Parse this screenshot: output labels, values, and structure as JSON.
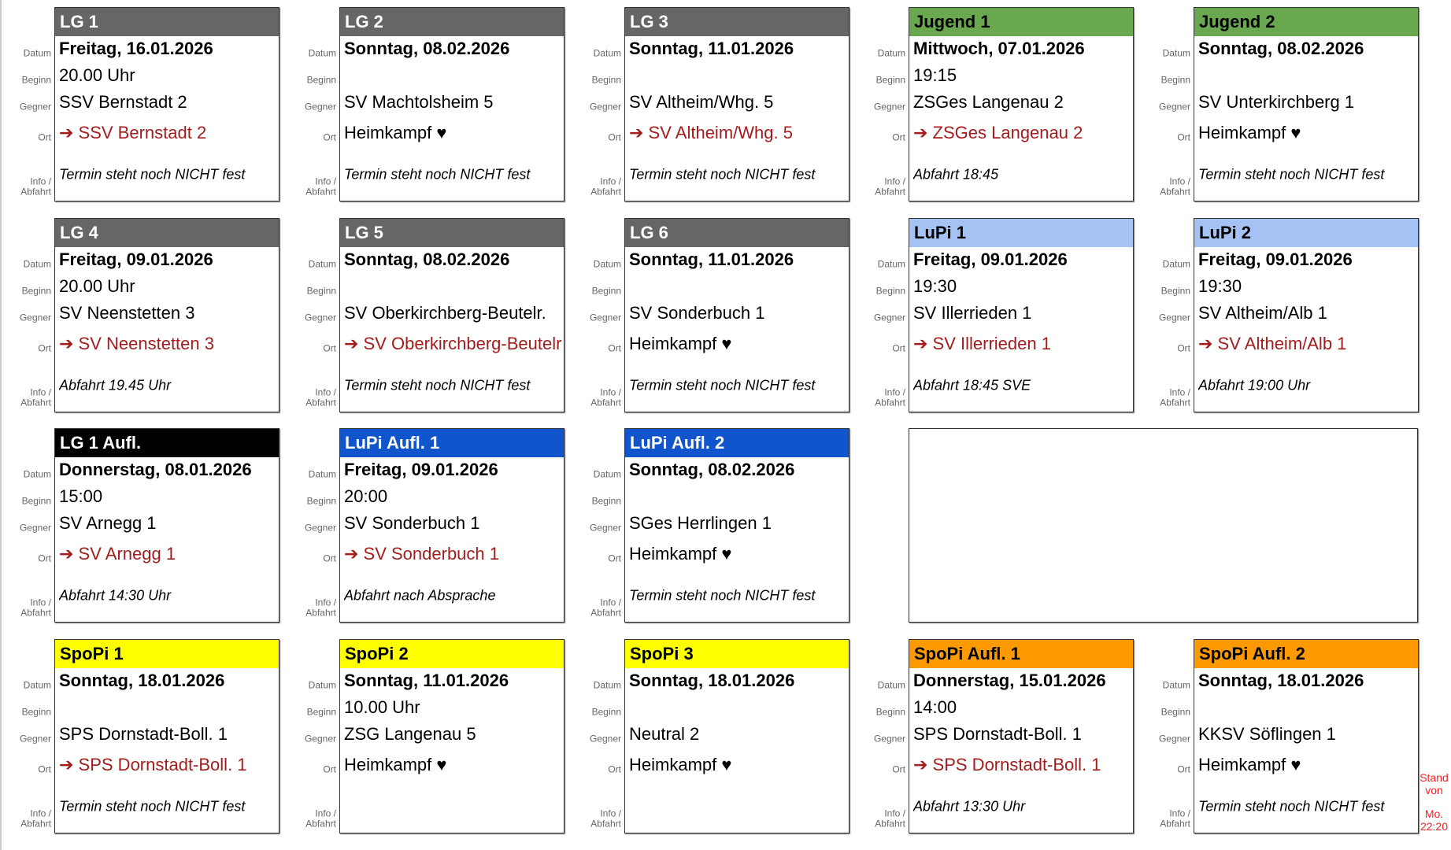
{
  "labels": {
    "datum": "Datum",
    "beginn": "Beginn",
    "gegner": "Gegner",
    "ort": "Ort",
    "info1": "Info /",
    "info2": "Abfahrt"
  },
  "colors": {
    "grey": "#666666",
    "green": "#6aa84f",
    "lightblue": "#a4c2f4",
    "black": "#000000",
    "blue": "#1155cc",
    "yellow": "#ffff00",
    "orange": "#ff9900",
    "away_text": "#a61c1c"
  },
  "cards": [
    {
      "team": "LG 1",
      "color": "grey",
      "datum": "Freitag, 16.01.2026",
      "beginn": "20.00 Uhr",
      "gegner": "SSV Bernstadt 2",
      "ort": "➔ SSV Bernstadt 2",
      "away": true,
      "info": "Termin steht noch NICHT fest"
    },
    {
      "team": "LG 2",
      "color": "grey",
      "datum": "Sonntag, 08.02.2026",
      "beginn": "",
      "gegner": "SV Machtolsheim 5",
      "ort": "Heimkampf ♥",
      "away": false,
      "info": "Termin steht noch NICHT fest"
    },
    {
      "team": "LG 3",
      "color": "grey",
      "datum": "Sonntag, 11.01.2026",
      "beginn": "",
      "gegner": "SV Altheim/Whg. 5",
      "ort": "➔ SV Altheim/Whg. 5",
      "away": true,
      "info": "Termin steht noch NICHT fest"
    },
    {
      "team": "Jugend 1",
      "color": "green",
      "datum": "Mittwoch, 07.01.2026",
      "beginn": "19:15",
      "gegner": "ZSGes Langenau 2",
      "ort": "➔ ZSGes Langenau 2",
      "away": true,
      "info": "Abfahrt 18:45"
    },
    {
      "team": "Jugend 2",
      "color": "green",
      "datum": "Sonntag, 08.02.2026",
      "beginn": "",
      "gegner": "SV Unterkirchberg 1",
      "ort": "Heimkampf ♥",
      "away": false,
      "info": "Termin steht noch NICHT fest"
    },
    {
      "team": "LG 4",
      "color": "grey",
      "datum": "Freitag, 09.01.2026",
      "beginn": "20.00 Uhr",
      "gegner": "SV Neenstetten 3",
      "ort": "➔ SV Neenstetten 3",
      "away": true,
      "info": "Abfahrt 19.45 Uhr"
    },
    {
      "team": "LG 5",
      "color": "grey",
      "datum": "Sonntag, 08.02.2026",
      "beginn": "",
      "gegner": "SV Oberkirchberg-Beutelr.",
      "ort": "➔ SV Oberkirchberg-Beutelr.",
      "away": true,
      "info": "Termin steht noch NICHT fest"
    },
    {
      "team": "LG 6",
      "color": "grey",
      "datum": "Sonntag, 11.01.2026",
      "beginn": "",
      "gegner": "SV Sonderbuch 1",
      "ort": "Heimkampf ♥",
      "away": false,
      "info": "Termin steht noch NICHT fest"
    },
    {
      "team": "LuPi 1",
      "color": "lightblue",
      "datum": "Freitag, 09.01.2026",
      "beginn": "19:30",
      "gegner": "SV Illerrieden 1",
      "ort": "➔ SV Illerrieden 1",
      "away": true,
      "info": "Abfahrt 18:45 SVE"
    },
    {
      "team": "LuPi 2",
      "color": "lightblue",
      "datum": "Freitag, 09.01.2026",
      "beginn": "19:30",
      "gegner": "SV Altheim/Alb 1",
      "ort": "➔ SV Altheim/Alb 1",
      "away": true,
      "info": "Abfahrt 19:00 Uhr"
    },
    {
      "team": "LG 1 Aufl.",
      "color": "black",
      "datum": "Donnerstag, 08.01.2026",
      "beginn": "15:00",
      "gegner": "SV Arnegg 1",
      "ort": "➔ SV Arnegg 1",
      "away": true,
      "info": "Abfahrt 14:30 Uhr"
    },
    {
      "team": "LuPi Aufl. 1",
      "color": "blue",
      "datum": "Freitag, 09.01.2026",
      "beginn": "20:00",
      "gegner": "SV Sonderbuch 1",
      "ort": "➔ SV Sonderbuch 1",
      "away": true,
      "info": "Abfahrt nach Absprache"
    },
    {
      "team": "LuPi Aufl. 2",
      "color": "blue",
      "datum": "Sonntag, 08.02.2026",
      "beginn": "",
      "gegner": "SGes Herrlingen 1",
      "ort": "Heimkampf ♥",
      "away": false,
      "info": "Termin steht noch NICHT fest"
    },
    {
      "team": "SpoPi 1",
      "color": "yellow",
      "datum": "Sonntag, 18.01.2026",
      "beginn": "",
      "gegner": "SPS Dornstadt-Boll. 1",
      "ort": "➔ SPS Dornstadt-Boll. 1",
      "away": true,
      "info": "Termin steht noch NICHT fest"
    },
    {
      "team": "SpoPi 2",
      "color": "yellow",
      "datum": "Sonntag, 11.01.2026",
      "beginn": "10.00 Uhr",
      "gegner": "ZSG Langenau 5",
      "ort": "Heimkampf ♥",
      "away": false,
      "info": ""
    },
    {
      "team": "SpoPi 3",
      "color": "yellow",
      "datum": "Sonntag, 18.01.2026",
      "beginn": "",
      "gegner": "Neutral 2",
      "ort": "Heimkampf ♥",
      "away": false,
      "info": ""
    },
    {
      "team": "SpoPi Aufl. 1",
      "color": "orange",
      "datum": "Donnerstag, 15.01.2026",
      "beginn": "14:00",
      "gegner": "SPS Dornstadt-Boll. 1",
      "ort": "➔ SPS Dornstadt-Boll. 1",
      "away": true,
      "info": "Abfahrt 13:30 Uhr"
    },
    {
      "team": "SpoPi Aufl. 2",
      "color": "orange",
      "datum": "Sonntag, 18.01.2026",
      "beginn": "",
      "gegner": "KKSV Söflingen 1",
      "ort": "Heimkampf ♥",
      "away": false,
      "info": "Termin steht noch NICHT fest"
    }
  ],
  "stand": {
    "line1": "Stand",
    "line2": "von",
    "line3": "Mo.",
    "line4": "22:20"
  }
}
